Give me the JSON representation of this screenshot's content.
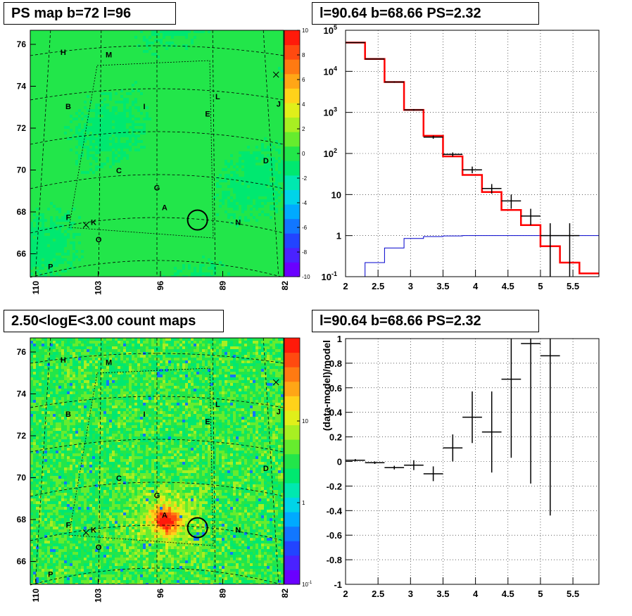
{
  "panels": {
    "ps_map": {
      "title": "PS map b=72 l=96",
      "colorbar_ticks": [
        "10",
        "8",
        "6",
        "4",
        "2",
        "0",
        "-2",
        "-4",
        "-6",
        "-8",
        "-10"
      ]
    },
    "spectrum": {
      "title": "l=90.64 b=68.66 PS=2.32"
    },
    "count_map": {
      "title": "2.50<logE<3.00 count maps",
      "colorbar_ticks": [
        "10",
        "1",
        "10"
      ],
      "colorbar_tick_exps": [
        "",
        "",
        "-1"
      ]
    },
    "residual": {
      "title": "l=90.64 b=68.66 PS=2.32"
    }
  },
  "map_axes": {
    "y_ticks": [
      "76",
      "74",
      "72",
      "70",
      "68",
      "66"
    ],
    "x_ticks": [
      "110",
      "103",
      "96",
      "89",
      "82"
    ]
  },
  "map_labels": [
    "H",
    "M",
    "B",
    "I",
    "L",
    "J",
    "E",
    "C",
    "D",
    "G",
    "A",
    "F",
    "K",
    "N",
    "O",
    "P"
  ],
  "chart_data": [
    {
      "type": "heatmap",
      "title": "PS map b=72 l=96",
      "xlabel": "",
      "ylabel": "",
      "x_ticks": [
        110,
        103,
        96,
        89,
        82
      ],
      "y_ticks": [
        76,
        74,
        72,
        70,
        68,
        66
      ],
      "color_range": [
        -10,
        10
      ],
      "color_scale": "linear",
      "dominant_value_range": [
        -2,
        2
      ],
      "markers": [
        "H",
        "M",
        "B",
        "I",
        "L",
        "J",
        "E",
        "C",
        "D",
        "G",
        "A",
        "F",
        "K",
        "N",
        "O",
        "P"
      ],
      "circle_marker": "source circle between G/A and N"
    },
    {
      "type": "line",
      "title": "l=90.64 b=68.66 PS=2.32",
      "xlabel": "",
      "ylabel": "",
      "xlim": [
        2,
        5.9
      ],
      "ylim": [
        0.1,
        100000
      ],
      "y_scale": "log",
      "x_ticks": [
        2,
        2.5,
        3,
        3.5,
        4,
        4.5,
        5,
        5.5
      ],
      "y_tick_labels": [
        "10^-1",
        "1",
        "10",
        "10^2",
        "10^3",
        "10^4",
        "10^5"
      ],
      "grid": true,
      "series": [
        {
          "role": "data (black crosses)",
          "x": [
            2.15,
            2.45,
            2.75,
            3.05,
            3.35,
            3.65,
            3.95,
            4.25,
            4.55,
            4.85,
            5.15,
            5.45
          ],
          "values": [
            50000,
            20000,
            5500,
            1150,
            250,
            95,
            40,
            14,
            7,
            3,
            1.0,
            1.0
          ],
          "err_low": [
            49000,
            19500,
            5300,
            1100,
            228,
            84,
            33,
            10.5,
            4.5,
            1.8,
            0.1,
            0.1
          ],
          "err_high": [
            51000,
            20500,
            5700,
            1200,
            272,
            106,
            48,
            18,
            10,
            4.5,
            2.0,
            2.0
          ],
          "xerr": 0.15
        },
        {
          "role": "model (red histogram)",
          "edges": [
            2.0,
            2.3,
            2.6,
            2.9,
            3.2,
            3.5,
            3.8,
            4.1,
            4.4,
            4.7,
            5.0,
            5.3,
            5.6,
            5.9
          ],
          "values": [
            50000,
            20000,
            5500,
            1150,
            270,
            85,
            30,
            11.5,
            4.2,
            1.8,
            0.55,
            0.22,
            0.12
          ]
        },
        {
          "role": "background (blue histogram)",
          "edges": [
            2.0,
            2.3,
            2.6,
            2.9,
            3.2,
            3.5,
            3.8,
            4.1,
            4.4,
            4.7,
            5.0,
            5.3,
            5.6,
            5.9
          ],
          "values": [
            0.08,
            0.22,
            0.5,
            0.85,
            0.95,
            0.98,
            1.0,
            1.0,
            1.0,
            1.0,
            1.0,
            1.0,
            1.0
          ]
        }
      ]
    },
    {
      "type": "heatmap",
      "title": "2.50<logE<3.00 count maps",
      "xlabel": "",
      "ylabel": "",
      "x_ticks": [
        110,
        103,
        96,
        89,
        82
      ],
      "y_ticks": [
        76,
        74,
        72,
        70,
        68,
        66
      ],
      "color_range": [
        0.1,
        40
      ],
      "color_scale": "log",
      "hot_spot": "A",
      "markers": [
        "H",
        "M",
        "B",
        "I",
        "L",
        "J",
        "E",
        "C",
        "D",
        "G",
        "A",
        "F",
        "K",
        "N",
        "O",
        "P"
      ]
    },
    {
      "type": "scatter",
      "title": "l=90.64 b=68.66 PS=2.32",
      "xlabel": "",
      "ylabel": "(data-model)/model",
      "xlim": [
        2,
        5.9
      ],
      "ylim": [
        -1,
        1
      ],
      "x_ticks": [
        2,
        2.5,
        3,
        3.5,
        4,
        4.5,
        5,
        5.5
      ],
      "y_ticks": [
        -1,
        -0.8,
        -0.6,
        -0.4,
        -0.2,
        0,
        0.2,
        0.4,
        0.6,
        0.8,
        1
      ],
      "grid": true,
      "x": [
        2.15,
        2.45,
        2.75,
        3.05,
        3.35,
        3.65,
        3.95,
        4.25,
        4.55,
        4.85,
        5.15
      ],
      "values": [
        0.01,
        -0.01,
        -0.05,
        -0.03,
        -0.1,
        0.11,
        0.36,
        0.24,
        0.67,
        0.96,
        0.86
      ],
      "err": [
        0.01,
        0.01,
        0.015,
        0.04,
        0.06,
        0.11,
        0.21,
        0.33,
        0.64,
        1.14,
        1.3
      ],
      "xerr": 0.15
    }
  ]
}
